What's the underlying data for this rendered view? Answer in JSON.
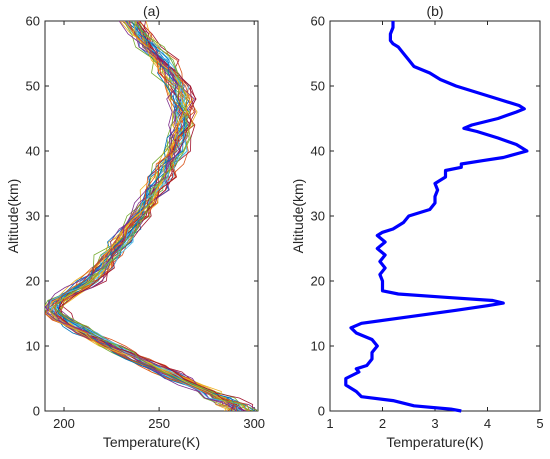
{
  "colors": {
    "ensemble": [
      "#0072BD",
      "#D95319",
      "#EDB120",
      "#7E2F8E",
      "#77AC30",
      "#4DBEEE",
      "#A2142F"
    ],
    "profile_b": "#0000FF",
    "axis": "#262626"
  },
  "chart_data": [
    {
      "type": "line",
      "title": "(a)",
      "xlabel": "Temperature(K)",
      "ylabel": "Altitude(km)",
      "xlim": [
        190,
        302
      ],
      "ylim": [
        0,
        60
      ],
      "xticks": [
        "200",
        "250",
        "300"
      ],
      "yticks": [
        "0",
        "10",
        "20",
        "30",
        "40",
        "50",
        "60"
      ],
      "grid": false,
      "legend": "none",
      "ensemble_count": 40,
      "base_profile": {
        "altitude": [
          0,
          1,
          2,
          3,
          4,
          5,
          6,
          7,
          8,
          9,
          10,
          11,
          12,
          13,
          14,
          15,
          16,
          17,
          18,
          19,
          20,
          22,
          24,
          26,
          28,
          30,
          32,
          34,
          36,
          38,
          40,
          42,
          44,
          46,
          48,
          50,
          52,
          54,
          56,
          58,
          60
        ],
        "temperature": [
          294,
          290,
          283,
          276,
          268,
          261,
          254,
          246,
          239,
          232,
          225,
          218,
          212,
          206,
          200,
          196,
          195,
          197,
          203,
          209,
          214,
          220,
          225,
          230,
          235,
          240,
          244,
          248,
          252,
          255,
          259,
          261,
          263,
          263,
          262,
          260,
          256,
          252,
          246,
          241,
          236
        ]
      }
    },
    {
      "type": "line",
      "title": "(b)",
      "xlabel": "Temperature(K)",
      "ylabel": "Altitude(km)",
      "xlim": [
        1,
        5
      ],
      "ylim": [
        0,
        60
      ],
      "xticks": [
        "1",
        "2",
        "3",
        "4",
        "5"
      ],
      "yticks": [
        "0",
        "10",
        "20",
        "30",
        "40",
        "50",
        "60"
      ],
      "grid": false,
      "legend": "none",
      "series": [
        {
          "altitude": [
            0,
            0.3,
            0.8,
            1.2,
            1.6,
            2.2,
            3.0,
            4.0,
            5.0,
            6.0,
            6.5,
            7.0,
            8.0,
            9.0,
            10.0,
            11.0,
            12.0,
            12.8,
            13.5,
            14.5,
            15.5,
            16.2,
            16.6,
            17.0,
            17.5,
            18.0,
            18.5,
            19.0,
            20.0,
            21.0,
            22.0,
            23.0,
            24.0,
            25.0,
            26.0,
            27.0,
            27.5,
            28.0,
            29.0,
            30.0,
            31.0,
            32.0,
            33.0,
            34.0,
            35.0,
            36.0,
            37.0,
            37.5,
            38.0,
            38.5,
            39.0,
            40.0,
            41.0,
            42.0,
            43.0,
            43.5,
            44.0,
            45.0,
            46.0,
            46.5,
            47.0,
            48.0,
            49.0,
            50.0,
            51.0,
            52.0,
            53.0,
            54.0,
            55.0,
            56.0,
            56.5,
            57.0,
            58.0,
            59.0,
            60.0
          ],
          "temperature": [
            3.5,
            3.3,
            2.6,
            2.4,
            2.2,
            1.6,
            1.5,
            1.3,
            1.3,
            1.55,
            1.5,
            1.7,
            1.8,
            1.8,
            1.9,
            1.8,
            1.5,
            1.4,
            1.6,
            2.5,
            3.4,
            4.0,
            4.3,
            4.1,
            3.2,
            2.3,
            2.0,
            2.0,
            2.0,
            1.95,
            2.05,
            1.95,
            2.05,
            1.9,
            2.05,
            1.9,
            2.0,
            2.2,
            2.4,
            2.5,
            2.9,
            3.0,
            3.0,
            3.05,
            3.0,
            3.2,
            3.2,
            3.5,
            3.5,
            3.9,
            4.3,
            4.75,
            4.55,
            4.2,
            3.8,
            3.55,
            3.7,
            4.2,
            4.55,
            4.7,
            4.6,
            4.2,
            3.8,
            3.4,
            3.1,
            2.9,
            2.6,
            2.5,
            2.4,
            2.3,
            2.2,
            2.15,
            2.15,
            2.2,
            2.2
          ]
        }
      ]
    }
  ]
}
